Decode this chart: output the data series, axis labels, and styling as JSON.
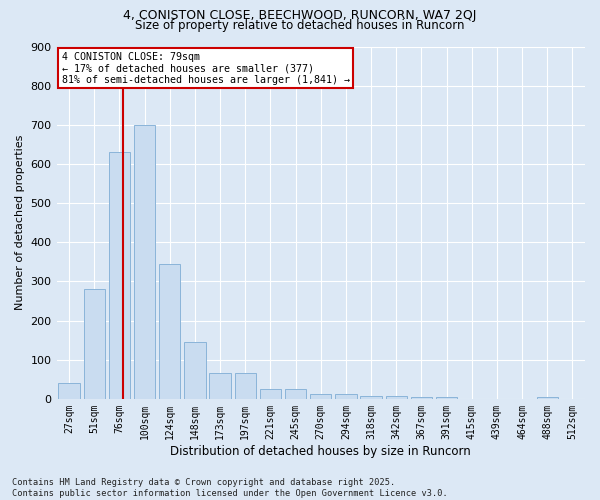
{
  "title1": "4, CONISTON CLOSE, BEECHWOOD, RUNCORN, WA7 2QJ",
  "title2": "Size of property relative to detached houses in Runcorn",
  "xlabel": "Distribution of detached houses by size in Runcorn",
  "ylabel": "Number of detached properties",
  "bar_color": "#c9dcf0",
  "bar_edge_color": "#8ab4d9",
  "bg_color": "#dce8f5",
  "grid_color": "#ffffff",
  "categories": [
    "27sqm",
    "51sqm",
    "76sqm",
    "100sqm",
    "124sqm",
    "148sqm",
    "173sqm",
    "197sqm",
    "221sqm",
    "245sqm",
    "270sqm",
    "294sqm",
    "318sqm",
    "342sqm",
    "367sqm",
    "391sqm",
    "415sqm",
    "439sqm",
    "464sqm",
    "488sqm",
    "512sqm"
  ],
  "values": [
    40,
    280,
    630,
    700,
    345,
    145,
    65,
    65,
    25,
    25,
    12,
    12,
    7,
    7,
    5,
    5,
    0,
    0,
    0,
    5,
    0
  ],
  "ylim": [
    0,
    900
  ],
  "yticks": [
    0,
    100,
    200,
    300,
    400,
    500,
    600,
    700,
    800,
    900
  ],
  "vline_x_index": 2.125,
  "annotation_line1": "4 CONISTON CLOSE: 79sqm",
  "annotation_line2": "← 17% of detached houses are smaller (377)",
  "annotation_line3": "81% of semi-detached houses are larger (1,841) →",
  "annotation_box_color": "#ffffff",
  "annotation_edge_color": "#cc0000",
  "vline_color": "#cc0000",
  "footnote": "Contains HM Land Registry data © Crown copyright and database right 2025.\nContains public sector information licensed under the Open Government Licence v3.0."
}
